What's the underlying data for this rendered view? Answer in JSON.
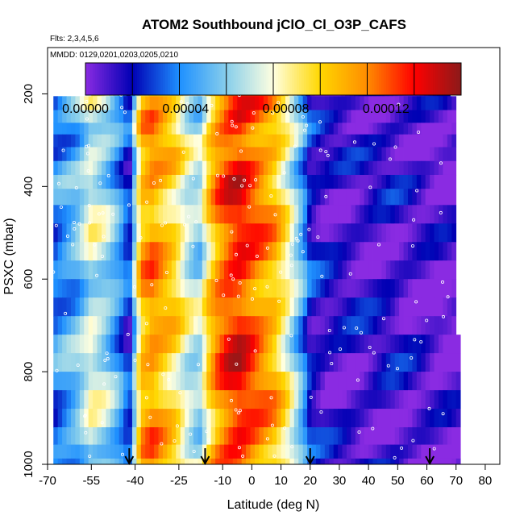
{
  "chart_data": {
    "type": "heatmap",
    "title": "ATOM2 Southbound jClO_Cl_O3P_CAFS",
    "flights_label": "Flts: 2,3,4,5,6",
    "dates_label": "MMDD: 0129,0201,0203,0205,0210",
    "xlabel": "Latitude (deg N)",
    "ylabel": "PSXC (mbar)",
    "xlim": [
      -70,
      85
    ],
    "ylim": [
      1000,
      100
    ],
    "x_ticks": [
      -70,
      -55,
      -40,
      -25,
      -10,
      0,
      10,
      20,
      30,
      40,
      50,
      60,
      70,
      80
    ],
    "y_ticks": [
      200,
      400,
      600,
      800,
      1000
    ],
    "colorbar": {
      "min": 0,
      "max": 0.00015,
      "tick_values": [
        0,
        4e-05,
        8e-05,
        0.00012
      ],
      "tick_labels": [
        "0.00000",
        "0.00004",
        "0.00008",
        "0.00012"
      ],
      "colors": [
        "#8a2be2",
        "#0000b4",
        "#1e90ff",
        "#87ceeb",
        "#ffffe0",
        "#ffd700",
        "#ff8c00",
        "#ff0000",
        "#8b1a1a"
      ]
    },
    "arrow_latitudes": [
      -42,
      -16,
      20,
      61
    ],
    "pressure_levels": [
      {
        "p": 190,
        "lat_min": -55,
        "lat_max": 68
      },
      {
        "p": 220,
        "lat_min": -68,
        "lat_max": 70
      },
      {
        "p": 250,
        "lat_min": -68,
        "lat_max": 70
      },
      {
        "p": 275,
        "lat_min": -68,
        "lat_max": 70
      },
      {
        "p": 300,
        "lat_min": -68,
        "lat_max": 70
      },
      {
        "p": 330,
        "lat_min": -68,
        "lat_max": 70
      },
      {
        "p": 360,
        "lat_min": -68,
        "lat_max": 70
      },
      {
        "p": 390,
        "lat_min": -68,
        "lat_max": 70
      },
      {
        "p": 420,
        "lat_min": -68,
        "lat_max": 70
      },
      {
        "p": 460,
        "lat_min": -68,
        "lat_max": 70
      },
      {
        "p": 500,
        "lat_min": -68,
        "lat_max": 70
      },
      {
        "p": 540,
        "lat_min": -68,
        "lat_max": 70
      },
      {
        "p": 580,
        "lat_min": -68,
        "lat_max": 70
      },
      {
        "p": 620,
        "lat_min": -68,
        "lat_max": 70
      },
      {
        "p": 660,
        "lat_min": -68,
        "lat_max": 70
      },
      {
        "p": 700,
        "lat_min": -68,
        "lat_max": 70
      },
      {
        "p": 740,
        "lat_min": -68,
        "lat_max": 71
      },
      {
        "p": 780,
        "lat_min": -68,
        "lat_max": 71
      },
      {
        "p": 820,
        "lat_min": -68,
        "lat_max": 71
      },
      {
        "p": 860,
        "lat_min": -68,
        "lat_max": 71
      },
      {
        "p": 900,
        "lat_min": -68,
        "lat_max": 71
      },
      {
        "p": 940,
        "lat_min": -68,
        "lat_max": 71
      },
      {
        "p": 975,
        "lat_min": -68,
        "lat_max": 71
      },
      {
        "p": 1000,
        "lat_min": -68,
        "lat_max": 71
      }
    ],
    "latitude_profile": [
      {
        "lat": -68,
        "value": 3.5e-05
      },
      {
        "lat": -60,
        "value": 5e-05
      },
      {
        "lat": -55,
        "value": 7e-05
      },
      {
        "lat": -50,
        "value": 6e-05
      },
      {
        "lat": -45,
        "value": 4e-05
      },
      {
        "lat": -42,
        "value": 2e-05
      },
      {
        "lat": -38,
        "value": 0.0001
      },
      {
        "lat": -34,
        "value": 0.00011
      },
      {
        "lat": -30,
        "value": 0.0001
      },
      {
        "lat": -26,
        "value": 9e-05
      },
      {
        "lat": -22,
        "value": 7e-05
      },
      {
        "lat": -18,
        "value": 6e-05
      },
      {
        "lat": -15,
        "value": 9e-05
      },
      {
        "lat": -12,
        "value": 0.00011
      },
      {
        "lat": -8,
        "value": 0.000125
      },
      {
        "lat": -4,
        "value": 0.00013
      },
      {
        "lat": 0,
        "value": 0.00012
      },
      {
        "lat": 4,
        "value": 0.00011
      },
      {
        "lat": 8,
        "value": 0.0001
      },
      {
        "lat": 12,
        "value": 8e-05
      },
      {
        "lat": 15,
        "value": 6e-05
      },
      {
        "lat": 18,
        "value": 4e-05
      },
      {
        "lat": 20,
        "value": 2e-05
      },
      {
        "lat": 25,
        "value": 1.2e-05
      },
      {
        "lat": 30,
        "value": 1e-05
      },
      {
        "lat": 40,
        "value": 1e-05
      },
      {
        "lat": 48,
        "value": 1.2e-05
      },
      {
        "lat": 55,
        "value": 8e-06
      },
      {
        "lat": 62,
        "value": 4e-06
      },
      {
        "lat": 71,
        "value": 2e-06
      }
    ]
  }
}
